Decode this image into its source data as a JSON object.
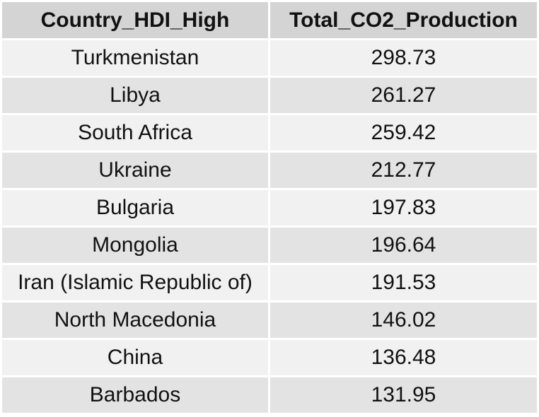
{
  "chart_data": {
    "type": "table",
    "columns": [
      "Country_HDI_High",
      "Total_CO2_Production"
    ],
    "rows": [
      [
        "Turkmenistan",
        "298.73"
      ],
      [
        "Libya",
        "261.27"
      ],
      [
        "South Africa",
        "259.42"
      ],
      [
        "Ukraine",
        "212.77"
      ],
      [
        "Bulgaria",
        "197.83"
      ],
      [
        "Mongolia",
        "196.64"
      ],
      [
        "Iran (Islamic Republic of)",
        "191.53"
      ],
      [
        "North Macedonia",
        "146.02"
      ],
      [
        "China",
        "136.48"
      ],
      [
        "Barbados",
        "131.95"
      ]
    ]
  },
  "colors": {
    "header_bg": "#d4d4d4",
    "row_light": "#f1f1f1",
    "row_dark": "#e3e3e3"
  }
}
